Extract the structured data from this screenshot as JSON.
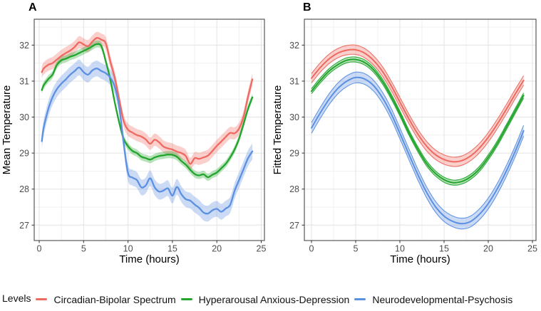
{
  "figure": {
    "legend": {
      "title": "Levels",
      "entries": [
        {
          "label": "Circadian-Bipolar Spectrum",
          "color": "#EE6A60"
        },
        {
          "label": "Hyperarousal Anxious-Depression",
          "color": "#22A52C"
        },
        {
          "label": "Neurodevelopmental-Psychosis",
          "color": "#5C90E2"
        }
      ]
    }
  },
  "chart_data": [
    {
      "id": "A",
      "type": "line",
      "panel_tag": "A",
      "xlabel": "Time (hours)",
      "ylabel": "Mean Temperature",
      "xlim": [
        -0.56,
        25.36
      ],
      "ylim": [
        26.57,
        32.72
      ],
      "xticks": [
        0,
        5,
        10,
        15,
        20,
        25
      ],
      "yticks": [
        27,
        28,
        29,
        30,
        31,
        32
      ],
      "grid": true,
      "legend_position": "bottom-shared",
      "ribbon_edges": false,
      "x": [
        0.3,
        0.5,
        1,
        1.5,
        2,
        2.5,
        3,
        3.5,
        4,
        4.5,
        5,
        5.5,
        6,
        6.5,
        7,
        7.5,
        8,
        8.5,
        9,
        9.5,
        10,
        10.5,
        11,
        11.5,
        12,
        12.5,
        13,
        13.5,
        14,
        14.5,
        15,
        15.5,
        16,
        16.5,
        17,
        17.5,
        18,
        18.5,
        19,
        19.5,
        20,
        20.5,
        21,
        21.5,
        22,
        22.5,
        23,
        23.5,
        24
      ],
      "series": [
        {
          "name": "Circadian-Bipolar Spectrum",
          "color": "#EE6A60",
          "ribbon_halfwidth": 0.17,
          "values": [
            31.25,
            31.35,
            31.45,
            31.5,
            31.6,
            31.7,
            31.78,
            31.85,
            31.95,
            32.08,
            32.02,
            31.97,
            32.1,
            32.2,
            32.15,
            32.05,
            31.55,
            31.1,
            30.5,
            29.9,
            29.65,
            29.57,
            29.5,
            29.46,
            29.38,
            29.26,
            29.37,
            29.3,
            29.18,
            29.13,
            29.1,
            29.04,
            29.0,
            28.92,
            28.7,
            28.86,
            28.84,
            28.88,
            28.93,
            29.06,
            29.2,
            29.32,
            29.45,
            29.56,
            29.55,
            29.68,
            30.0,
            30.55,
            31.05
          ]
        },
        {
          "name": "Hyperarousal Anxious-Depression",
          "color": "#22A52C",
          "ribbon_halfwidth": 0.1,
          "values": [
            30.75,
            30.88,
            31.05,
            31.18,
            31.45,
            31.58,
            31.62,
            31.68,
            31.72,
            31.78,
            31.84,
            31.9,
            31.97,
            32.03,
            31.97,
            31.55,
            31.05,
            30.42,
            29.86,
            29.4,
            29.19,
            29.06,
            29.0,
            28.9,
            28.86,
            28.82,
            28.88,
            28.92,
            28.94,
            28.96,
            28.95,
            28.9,
            28.78,
            28.68,
            28.54,
            28.42,
            28.38,
            28.41,
            28.33,
            28.4,
            28.46,
            28.58,
            28.7,
            28.88,
            29.1,
            29.4,
            29.8,
            30.22,
            30.55
          ]
        },
        {
          "name": "Neurodevelopmental-Psychosis",
          "color": "#5C90E2",
          "ribbon_halfwidth": 0.22,
          "values": [
            29.33,
            29.7,
            30.2,
            30.55,
            30.78,
            30.93,
            31.05,
            31.18,
            31.28,
            31.38,
            31.25,
            31.18,
            31.3,
            31.35,
            31.28,
            31.22,
            31.1,
            30.85,
            30.3,
            29.3,
            28.45,
            28.32,
            28.25,
            28.05,
            28.1,
            28.3,
            28.05,
            27.93,
            27.96,
            28.02,
            27.82,
            28.06,
            27.86,
            27.72,
            27.68,
            27.57,
            27.48,
            27.35,
            27.32,
            27.41,
            27.45,
            27.37,
            27.46,
            27.56,
            27.95,
            28.25,
            28.55,
            28.85,
            29.05
          ]
        }
      ]
    },
    {
      "id": "B",
      "type": "line",
      "panel_tag": "B",
      "xlabel": "Time (hours)",
      "ylabel": "Fitted Temperature",
      "xlim": [
        -0.81,
        25.4
      ],
      "ylim": [
        26.57,
        32.72
      ],
      "xticks": [
        0,
        5,
        10,
        15,
        20,
        25
      ],
      "yticks": [
        27,
        28,
        29,
        30,
        31,
        32
      ],
      "grid": true,
      "legend_position": "bottom-shared",
      "ribbon_edges": true,
      "x": [
        0,
        1,
        2,
        3,
        4,
        5,
        6,
        7,
        8,
        9,
        10,
        11,
        12,
        13,
        14,
        15,
        16,
        17,
        18,
        19,
        20,
        21,
        22,
        23,
        24
      ],
      "series": [
        {
          "name": "Circadian-Bipolar Spectrum",
          "color": "#EE6A60",
          "ribbon_halfwidth": 0.13,
          "values": [
            31.08,
            31.38,
            31.62,
            31.78,
            31.86,
            31.87,
            31.78,
            31.58,
            31.28,
            30.88,
            30.42,
            29.96,
            29.54,
            29.2,
            28.96,
            28.82,
            28.76,
            28.79,
            28.92,
            29.14,
            29.44,
            29.8,
            30.2,
            30.62,
            31.02
          ]
        },
        {
          "name": "Hyperarousal Anxious-Depression",
          "color": "#22A52C",
          "ribbon_halfwidth": 0.07,
          "values": [
            30.72,
            31.02,
            31.28,
            31.46,
            31.58,
            31.6,
            31.52,
            31.32,
            31.0,
            30.58,
            30.1,
            29.58,
            29.12,
            28.72,
            28.44,
            28.26,
            28.18,
            28.21,
            28.34,
            28.56,
            28.88,
            29.26,
            29.7,
            30.15,
            30.6
          ]
        },
        {
          "name": "Neurodevelopmental-Psychosis",
          "color": "#5C90E2",
          "ribbon_halfwidth": 0.15,
          "values": [
            29.7,
            30.12,
            30.5,
            30.8,
            31.0,
            31.1,
            31.06,
            30.88,
            30.55,
            30.1,
            29.55,
            28.98,
            28.42,
            27.92,
            27.52,
            27.25,
            27.1,
            27.04,
            27.1,
            27.3,
            27.6,
            28.0,
            28.48,
            29.02,
            29.62
          ]
        }
      ]
    }
  ]
}
